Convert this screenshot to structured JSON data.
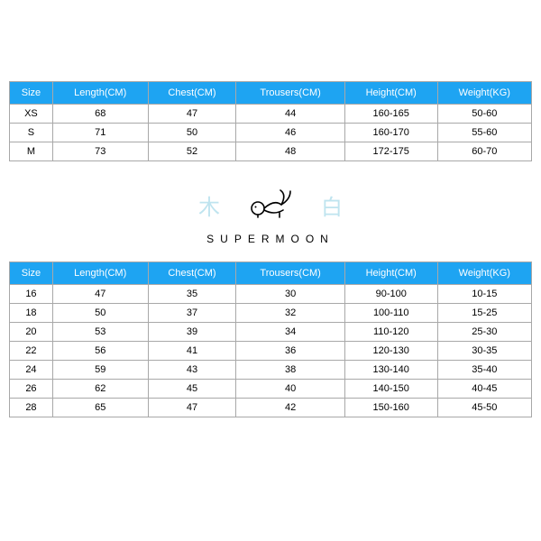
{
  "header_bg": "#1ea4f2",
  "header_text_color": "#ffffff",
  "border_color": "#a8a8a8",
  "table1": {
    "columns": [
      "Size",
      "Length(CM)",
      "Chest(CM)",
      "Trousers(CM)",
      "Height(CM)",
      "Weight(KG)"
    ],
    "rows": [
      [
        "XS",
        "68",
        "47",
        "44",
        "160-165",
        "50-60"
      ],
      [
        "S",
        "71",
        "50",
        "46",
        "160-170",
        "55-60"
      ],
      [
        "M",
        "73",
        "52",
        "48",
        "172-175",
        "60-70"
      ]
    ]
  },
  "brand": {
    "left_char": "木",
    "right_char": "白",
    "char_color": "#bfe4ef",
    "text": "SUPERMOON",
    "rabbit_stroke": "#000000"
  },
  "table2": {
    "columns": [
      "Size",
      "Length(CM)",
      "Chest(CM)",
      "Trousers(CM)",
      "Height(CM)",
      "Weight(KG)"
    ],
    "rows": [
      [
        "16",
        "47",
        "35",
        "30",
        "90-100",
        "10-15"
      ],
      [
        "18",
        "50",
        "37",
        "32",
        "100-110",
        "15-25"
      ],
      [
        "20",
        "53",
        "39",
        "34",
        "110-120",
        "25-30"
      ],
      [
        "22",
        "56",
        "41",
        "36",
        "120-130",
        "30-35"
      ],
      [
        "24",
        "59",
        "43",
        "38",
        "130-140",
        "35-40"
      ],
      [
        "26",
        "62",
        "45",
        "40",
        "140-150",
        "40-45"
      ],
      [
        "28",
        "65",
        "47",
        "42",
        "150-160",
        "45-50"
      ]
    ]
  }
}
